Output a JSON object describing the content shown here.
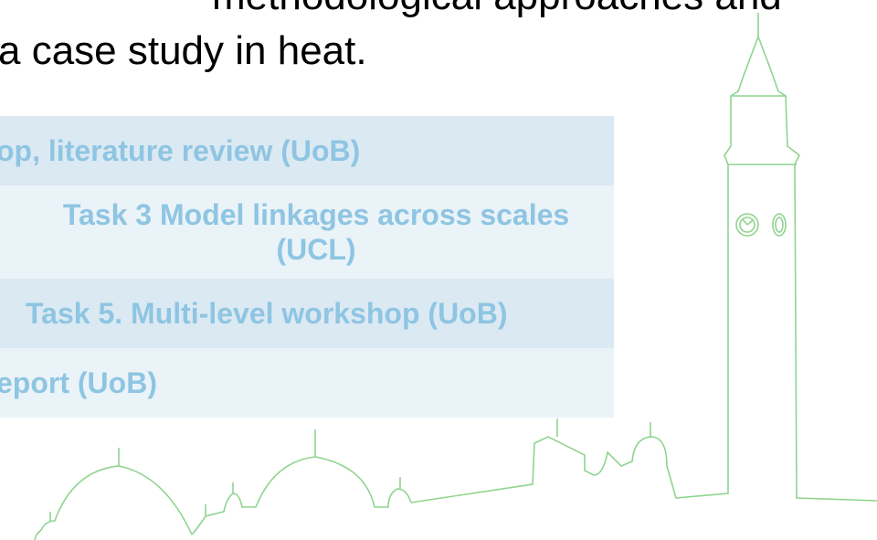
{
  "slide": {
    "title_lines": [
      "methodological approaches and",
      "a case study in heat."
    ],
    "table": {
      "rows": [
        "op, literature review (UoB)",
        "Task 3 Model linkages across scales (UCL)",
        "Task 5. Multi-level workshop (UoB)",
        "eport (UoB)"
      ]
    }
  }
}
